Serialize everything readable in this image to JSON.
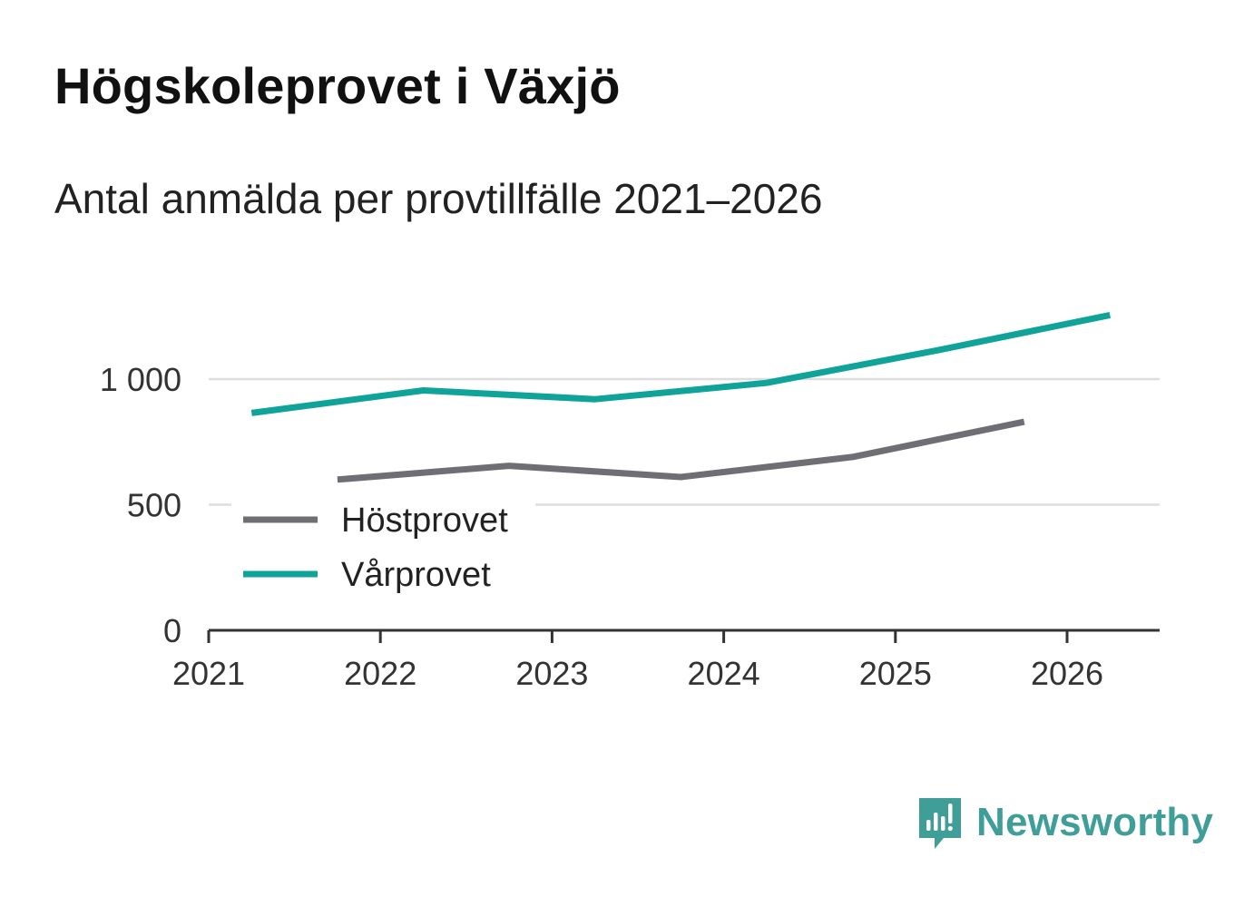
{
  "chart_data": {
    "type": "line",
    "title": "Högskoleprovet i Växjö",
    "subtitle": "Antal anmälda per provtillfälle 2021–2026",
    "xlabel": "",
    "ylabel": "",
    "x_ticks": [
      "2021",
      "2022",
      "2023",
      "2024",
      "2025",
      "2026"
    ],
    "y_ticks": [
      {
        "value": 0,
        "label": "0"
      },
      {
        "value": 500,
        "label": "500"
      },
      {
        "value": 1000,
        "label": "1 000"
      }
    ],
    "xlim": [
      2021,
      2026.55
    ],
    "ylim": [
      0,
      1250
    ],
    "grid": true,
    "legend_position": "bottom-left",
    "series": [
      {
        "name": "Höstprovet",
        "color": "#6e6e74",
        "x": [
          2021.75,
          2022.75,
          2023.75,
          2024.75,
          2025.75
        ],
        "y": [
          600,
          655,
          610,
          690,
          830
        ]
      },
      {
        "name": "Vårprovet",
        "color": "#0fa39a",
        "x": [
          2021.25,
          2022.25,
          2023.25,
          2024.25,
          2025.25,
          2026.25
        ],
        "y": [
          865,
          955,
          920,
          985,
          1115,
          1255
        ]
      }
    ]
  },
  "brand": {
    "name": "Newsworthy",
    "icon": "newsworthy-logo-icon",
    "color": "#3f9e98"
  }
}
